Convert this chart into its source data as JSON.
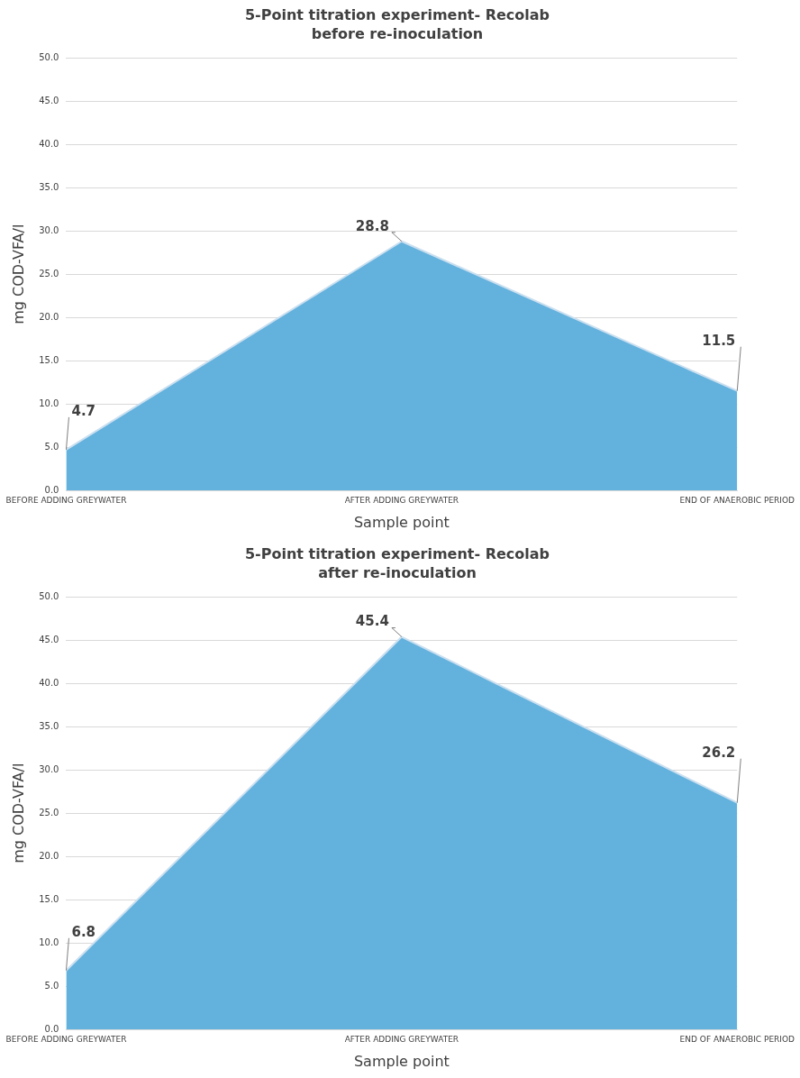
{
  "chart_data": [
    {
      "type": "area",
      "title": "5-Point titration experiment- Recolab",
      "subtitle": "before re-inoculation",
      "xlabel": "Sample point",
      "ylabel": "mg COD-VFA/l",
      "categories": [
        "BEFORE ADDING GREYWATER",
        "AFTER ADDING GREYWATER",
        "END OF ANAEROBIC PERIOD"
      ],
      "values": [
        4.7,
        28.8,
        11.5
      ],
      "color": "#63b1dd",
      "ylim": [
        0,
        50
      ],
      "yticks": [
        {
          "value": 0,
          "label": "0.0"
        },
        {
          "value": 5,
          "label": "5.0"
        },
        {
          "value": 10,
          "label": "10.0"
        },
        {
          "value": 15,
          "label": "15.0"
        },
        {
          "value": 20,
          "label": "20.0"
        },
        {
          "value": 25,
          "label": "25.0"
        },
        {
          "value": 30,
          "label": "30.0"
        },
        {
          "value": 35,
          "label": "35.0"
        },
        {
          "value": 40,
          "label": "40.0"
        },
        {
          "value": 45,
          "label": "45.0"
        },
        {
          "value": 50,
          "label": "50.0"
        }
      ],
      "grid": "y",
      "legend": false,
      "data_labels": true
    },
    {
      "type": "area",
      "title": "5-Point titration experiment- Recolab",
      "subtitle": "after re-inoculation",
      "xlabel": "Sample point",
      "ylabel": "mg COD-VFA/l",
      "categories": [
        "BEFORE ADDING GREYWATER",
        "AFTER ADDING GREYWATER",
        "END OF ANAEROBIC PERIOD"
      ],
      "values": [
        6.8,
        45.4,
        26.2
      ],
      "color": "#63b1dd",
      "ylim": [
        0,
        50
      ],
      "yticks": [
        {
          "value": 0,
          "label": "0.0"
        },
        {
          "value": 5,
          "label": "5.0"
        },
        {
          "value": 10,
          "label": "10.0"
        },
        {
          "value": 15,
          "label": "15.0"
        },
        {
          "value": 20,
          "label": "20.0"
        },
        {
          "value": 25,
          "label": "25.0"
        },
        {
          "value": 30,
          "label": "30.0"
        },
        {
          "value": 35,
          "label": "35.0"
        },
        {
          "value": 40,
          "label": "40.0"
        },
        {
          "value": 45,
          "label": "45.0"
        },
        {
          "value": 50,
          "label": "50.0"
        }
      ],
      "grid": "y",
      "legend": false,
      "data_labels": true
    }
  ]
}
